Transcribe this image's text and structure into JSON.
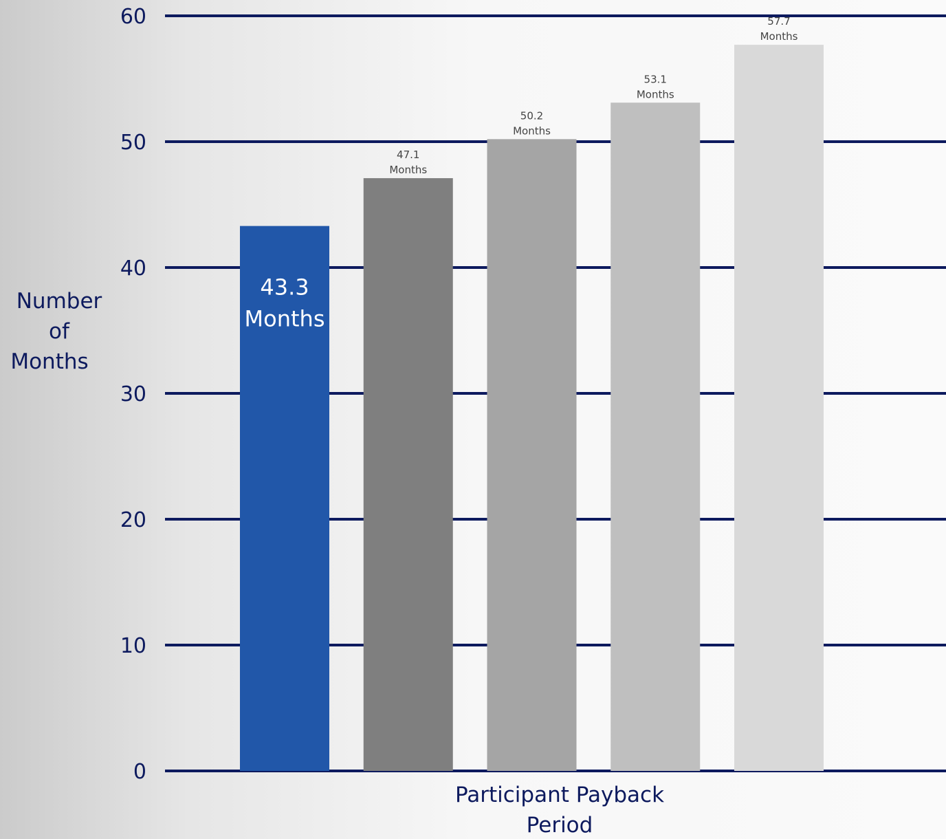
{
  "chart_data": {
    "type": "bar",
    "title": "",
    "xlabel": "Participant Payback Period",
    "ylabel": "Number of Months",
    "ylim": [
      0,
      60
    ],
    "yticks": [
      0,
      10,
      20,
      30,
      40,
      50,
      60
    ],
    "grid": true,
    "categories": [
      "",
      "",
      "",
      "",
      ""
    ],
    "values": [
      43.3,
      47.1,
      50.2,
      53.1,
      57.7
    ],
    "value_unit": "Months",
    "bar_colors": [
      "#2157a9",
      "#7f7f7f",
      "#a5a5a5",
      "#bfbfbf",
      "#d9d9d9"
    ]
  },
  "colors": {
    "gridline": "#0d1a5e",
    "text": "#0d1a5e"
  }
}
